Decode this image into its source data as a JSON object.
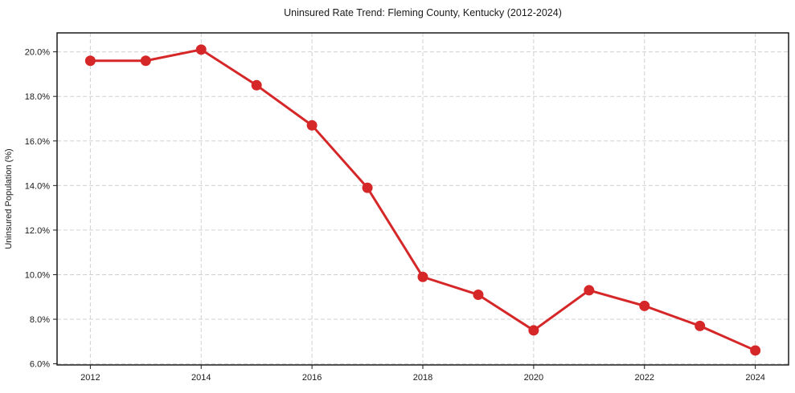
{
  "chart_data": {
    "type": "line",
    "title": "Uninsured Rate Trend: Fleming County, Kentucky (2012-2024)",
    "xlabel": "",
    "ylabel": "Uninsured Population (%)",
    "x": [
      2012,
      2013,
      2014,
      2015,
      2016,
      2017,
      2018,
      2019,
      2020,
      2021,
      2022,
      2023,
      2024
    ],
    "series": [
      {
        "name": "Uninsured rate",
        "values": [
          19.6,
          19.6,
          20.1,
          18.5,
          16.7,
          13.9,
          9.9,
          9.1,
          7.5,
          9.3,
          8.6,
          7.7,
          6.6
        ]
      }
    ],
    "xlim": [
      2011.4,
      2024.6
    ],
    "ylim": [
      5.95,
      20.85
    ],
    "xticks": {
      "values": [
        2012,
        2014,
        2016,
        2018,
        2020,
        2022,
        2024
      ],
      "labels": [
        "2012",
        "2014",
        "2016",
        "2018",
        "2020",
        "2022",
        "2024"
      ]
    },
    "yticks": {
      "values": [
        6,
        8,
        10,
        12,
        14,
        16,
        18,
        20
      ],
      "labels": [
        "6.0%",
        "8.0%",
        "10.0%",
        "12.0%",
        "14.0%",
        "16.0%",
        "18.0%",
        "20.0%"
      ]
    },
    "grid": true,
    "grid_style": "dashed",
    "legend": "none",
    "colors": {
      "line": "#d62728",
      "marker": "#d62728",
      "grid": "#d0d0d0",
      "spine": "#1a1a1a",
      "text": "#1a1a1a",
      "background": "#ffffff"
    }
  }
}
